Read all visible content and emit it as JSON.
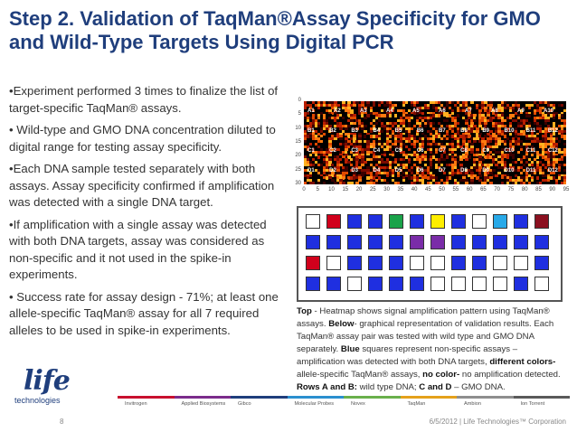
{
  "slide": {
    "title": "Step 2. Validation of TaqMan®Assay Specificity for GMO and Wild-Type Targets Using Digital PCR",
    "bullets": [
      "•Experiment performed 3 times to finalize the list of  target-specific TaqMan® assays.",
      "• Wild-type and GMO DNA concentration diluted to digital range for testing assay specificity.",
      "•Each DNA sample tested separately with both assays.  Assay specificity confirmed if amplification was detected with a single DNA target.",
      "•If amplification with a single assay was detected with both DNA targets, assay was considered as non-specific and it not used in the spike-in experiments.",
      "• Success rate for assay design - 71%; at least one allele-specific TaqMan® assay for all 7 required alleles to be used in spike-in experiments."
    ],
    "caption": {
      "top_label": "Top",
      "top_text": " - Heatmap  shows  signal amplification pattern using TaqMan® assays. ",
      "below_label": "Below",
      "below_text": "- graphical representation of validation results. Each TaqMan® assay pair was tested with wild  type and GMO DNA separately. ",
      "blue_label": "Blue",
      "blue_text": " squares represent non-specific  assays –amplification  was detected  with both DNA  targets, ",
      "diff_label": "different colors-",
      "diff_text": " allele-specific  TaqMan® assays, ",
      "none_label": "no color-",
      "none_text": " no amplification detected. ",
      "rows_label": "Rows A and B:",
      "rows_text": " wild type DNA;  ",
      "cd_label": "C and D",
      "cd_text": " – GMO DNA."
    },
    "heatmap": {
      "y_ticks": [
        "0",
        "5",
        "10",
        "15",
        "20",
        "25",
        "30"
      ],
      "x_ticks": [
        "0",
        "5",
        "10",
        "15",
        "20",
        "25",
        "30",
        "35",
        "40",
        "45",
        "50",
        "55",
        "60",
        "65",
        "70",
        "75",
        "80",
        "85",
        "90",
        "95"
      ],
      "well_labels": [
        "A1",
        "A2",
        "A3",
        "A4",
        "A5",
        "A6",
        "A7",
        "A8",
        "A9",
        "A10",
        "B1",
        "B2",
        "B3",
        "B4",
        "B5",
        "B6",
        "B7",
        "B8",
        "B9",
        "B10",
        "B11",
        "B12",
        "C1",
        "C2",
        "C3",
        "C4",
        "C5",
        "C6",
        "C7",
        "C8",
        "C9",
        "C10",
        "C11",
        "C12",
        "D1",
        "D2",
        "D3",
        "D4",
        "D5",
        "D6",
        "D7",
        "D8",
        "D9",
        "D10",
        "D11",
        "D12"
      ]
    },
    "result_grid": {
      "rows": [
        [
          "white",
          "red",
          "blue",
          "blue",
          "green",
          "blue",
          "yellow",
          "blue",
          "white",
          "cyan",
          "blue",
          "darkred"
        ],
        [
          "blue",
          "blue",
          "blue",
          "blue",
          "blue",
          "purple",
          "purple",
          "blue",
          "blue",
          "blue",
          "blue",
          "blue"
        ],
        [
          "red",
          "white",
          "blue",
          "blue",
          "blue",
          "white",
          "white",
          "blue",
          "blue",
          "white",
          "white",
          "blue"
        ],
        [
          "blue",
          "blue",
          "white",
          "blue",
          "blue",
          "blue",
          "white",
          "white",
          "white",
          "white",
          "blue",
          "white"
        ]
      ],
      "colors": {
        "white": "#ffffff",
        "red": "#d1001c",
        "blue": "#1f2fe0",
        "green": "#1aa34a",
        "yellow": "#ffee00",
        "cyan": "#28a9e8",
        "darkred": "#8b1020",
        "purple": "#7a2ca8"
      }
    },
    "logo": {
      "word": "life",
      "sub": "technologies"
    },
    "brands": [
      {
        "name": "Invitrogen",
        "color": "#c8102e"
      },
      {
        "name": "Applied Biosystems",
        "color": "#7b2c8b"
      },
      {
        "name": "Gibco",
        "color": "#1f3e7c"
      },
      {
        "name": "Molecular Probes",
        "color": "#2b8fcf"
      },
      {
        "name": "Novex",
        "color": "#6ab04c"
      },
      {
        "name": "TaqMan",
        "color": "#e4a11b"
      },
      {
        "name": "Ambion",
        "color": "#8e8e8e"
      },
      {
        "name": "Ion Torrent",
        "color": "#5a5a5a"
      }
    ],
    "page_number": "8",
    "footer": "6/5/2012  |  Life Technologies™ Corporation"
  }
}
